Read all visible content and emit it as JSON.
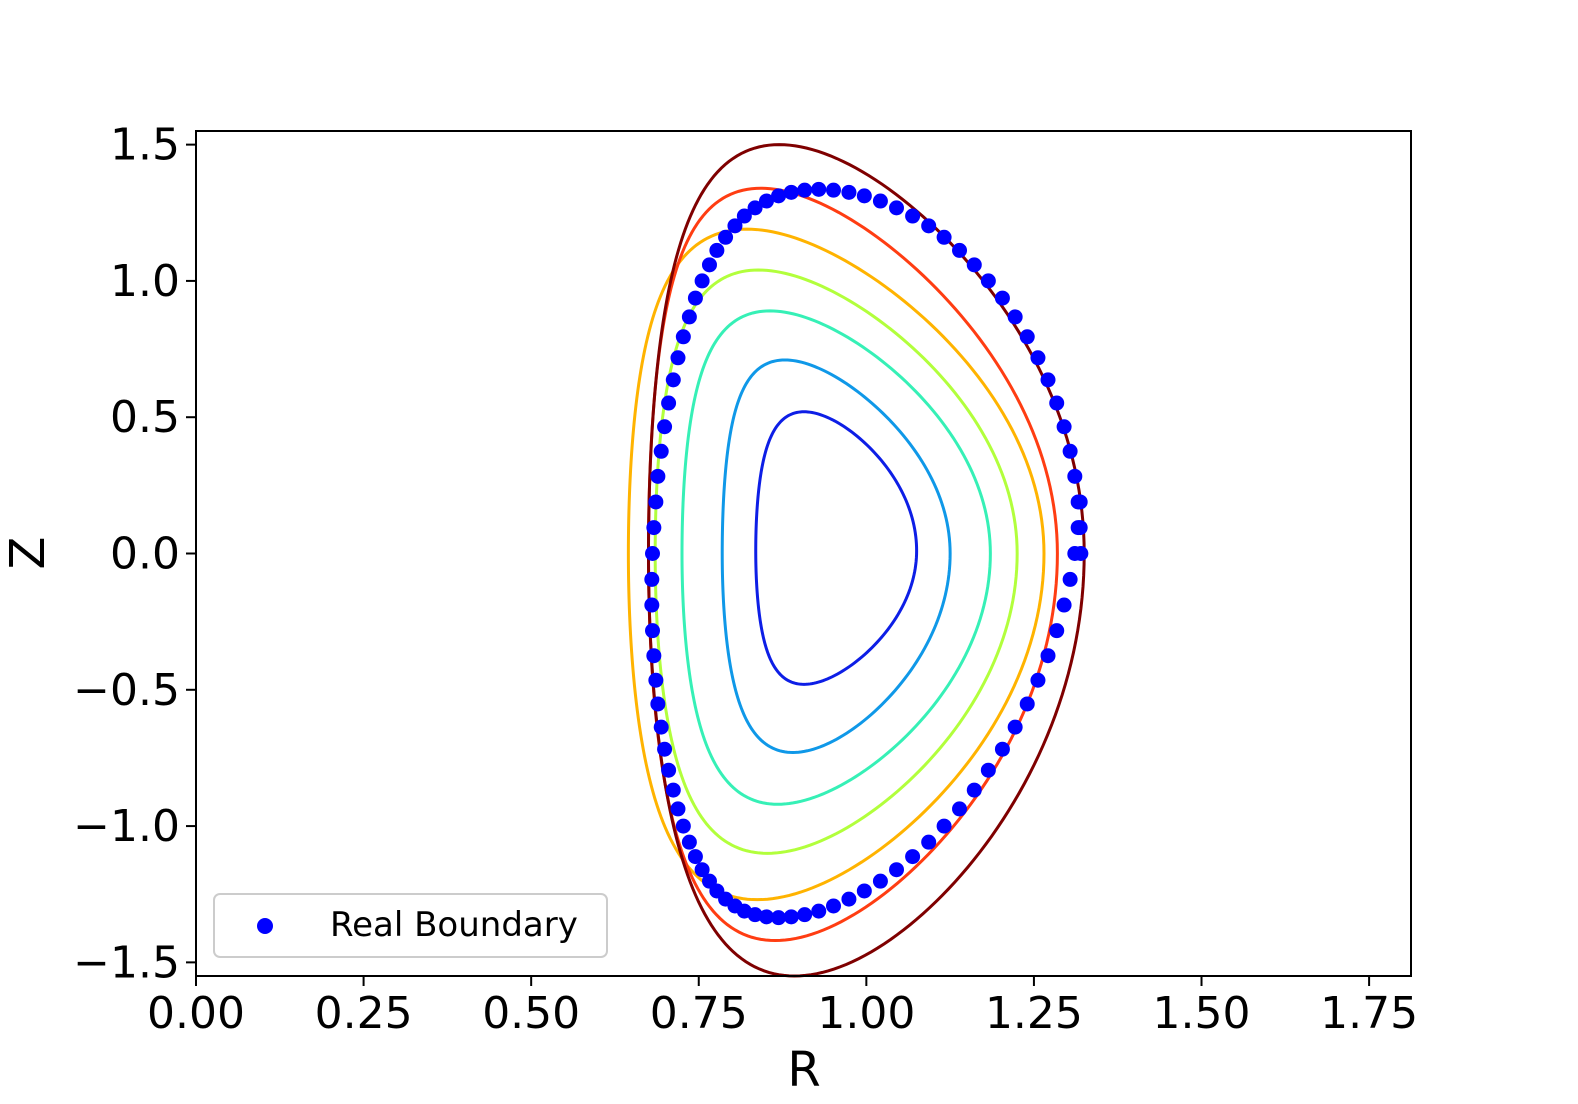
{
  "chart_data": {
    "type": "scatter",
    "xlabel": "R",
    "ylabel": "Z",
    "xlim": [
      0.0,
      1.8125
    ],
    "ylim": [
      -1.55,
      1.55
    ],
    "x_ticks": [
      0.0,
      0.25,
      0.5,
      0.75,
      1.0,
      1.25,
      1.5,
      1.75
    ],
    "x_tick_labels": [
      "0.00",
      "0.25",
      "0.50",
      "0.75",
      "1.00",
      "1.25",
      "1.50",
      "1.75"
    ],
    "y_ticks": [
      1.5,
      1.0,
      0.5,
      0.0,
      -0.5,
      -1.0,
      -1.5
    ],
    "y_tick_labels": [
      "1.5",
      "1.0",
      "0.5",
      "0.0",
      "−0.5",
      "−1.0",
      "−1.5"
    ],
    "grid": false,
    "legend": {
      "placement": "lower-left",
      "entries": [
        "Real Boundary"
      ]
    },
    "contours": [
      {
        "color": "#0d1ee6",
        "R0": 0.955,
        "a": 0.12,
        "kappa_up": 0.51,
        "kappa_low": 0.49,
        "delta_up": 0.4,
        "delta_low": 0.4,
        "z_shift": 0.01
      },
      {
        "color": "#0f98e8",
        "R0": 0.955,
        "a": 0.17,
        "kappa_up": 0.71,
        "kappa_low": 0.73,
        "delta_up": 0.45,
        "delta_low": 0.38,
        "z_shift": 0.0
      },
      {
        "color": "#36f0b6",
        "R0": 0.955,
        "a": 0.23,
        "kappa_up": 0.89,
        "kappa_low": 0.92,
        "delta_up": 0.43,
        "delta_low": 0.38,
        "z_shift": 0.0
      },
      {
        "color": "#b2ff3c",
        "R0": 0.955,
        "a": 0.27,
        "kappa_up": 1.04,
        "kappa_low": 1.1,
        "delta_up": 0.43,
        "delta_low": 0.38,
        "z_shift": 0.0
      },
      {
        "color": "#ffb300",
        "R0": 0.955,
        "a": 0.31,
        "kappa_up": 1.19,
        "kappa_low": 1.27,
        "delta_up": 0.43,
        "delta_low": 0.38,
        "z_shift": 0.0
      },
      {
        "color": "#ff3d12",
        "R0": 0.98,
        "a": 0.305,
        "kappa_up": 1.34,
        "kappa_low": 1.42,
        "delta_up": 0.45,
        "delta_low": 0.38,
        "z_shift": 0.0
      },
      {
        "color": "#7f0000",
        "R0": 1.0,
        "a": 0.325,
        "kappa_up": 1.5,
        "kappa_low": 1.55,
        "delta_up": 0.4,
        "delta_low": 0.33,
        "z_shift": 0.0
      }
    ],
    "series": [
      {
        "name": "Real Boundary",
        "color": "#0000ff",
        "shape": {
          "R0": 1.0,
          "a": 0.32,
          "kappa_up": 1.45,
          "kappa_low": 1.45,
          "delta_up": 0.38,
          "delta_low": 0.38
        },
        "x": [
          1.32,
          1.319,
          1.316,
          1.311,
          1.304,
          1.295,
          1.284,
          1.271,
          1.256,
          1.24,
          1.222,
          1.203,
          1.182,
          1.161,
          1.139,
          1.116,
          1.093,
          1.069,
          1.045,
          1.021,
          0.997,
          0.974,
          0.951,
          0.929,
          0.908,
          0.888,
          0.869,
          0.851,
          0.834,
          0.818,
          0.804,
          0.79,
          0.777,
          0.766,
          0.755,
          0.745,
          0.736,
          0.727,
          0.719,
          0.712,
          0.705,
          0.699,
          0.694,
          0.689,
          0.686,
          0.683,
          0.681,
          0.68,
          0.68,
          0.681,
          0.683,
          0.686,
          0.689,
          0.694,
          0.699,
          0.705,
          0.712,
          0.719,
          0.727,
          0.736,
          0.745,
          0.755,
          0.766,
          0.777,
          0.79,
          0.804,
          0.818,
          0.834,
          0.851,
          0.869,
          0.888,
          0.908,
          0.929,
          0.951,
          0.974,
          0.997,
          1.021,
          1.045,
          1.069,
          1.093,
          1.116,
          1.139,
          1.161,
          1.182,
          1.203,
          1.222,
          1.24,
          1.256,
          1.271,
          1.284,
          1.295,
          1.304,
          1.311,
          1.316,
          1.319
        ],
        "y": [
          0.0,
          0.095,
          0.189,
          0.283,
          0.375,
          0.465,
          0.552,
          0.637,
          0.718,
          0.795,
          0.868,
          0.937,
          1.0,
          1.059,
          1.112,
          1.16,
          1.202,
          1.238,
          1.268,
          1.293,
          1.312,
          1.325,
          1.333,
          1.336,
          1.333,
          1.325,
          1.312,
          1.293,
          1.268,
          1.238,
          1.202,
          1.16,
          1.112,
          1.059,
          1.0,
          0.937,
          0.868,
          0.795,
          0.718,
          0.637,
          0.552,
          0.465,
          0.375,
          0.283,
          0.189,
          0.095,
          0.0,
          -0.095,
          -0.189,
          -0.283,
          -0.375,
          -0.465,
          -0.552,
          -0.637,
          -0.718,
          -0.795,
          -0.868,
          -0.937,
          -1.0,
          -1.059,
          -1.112,
          -1.16,
          -1.202,
          -1.238,
          -1.268,
          -1.293,
          -1.312,
          -1.325,
          -1.333,
          -1.336,
          -1.333,
          -1.325,
          -1.312,
          -1.293,
          -1.268,
          -1.238,
          -1.202,
          -1.16,
          -1.112,
          -1.059,
          -1.0,
          -0.937,
          -0.868,
          -0.795,
          -0.718,
          -0.637,
          -0.552,
          -0.465,
          -0.375,
          -0.283,
          -0.189,
          -0.095,
          0.0,
          0.095,
          0.189
        ]
      }
    ]
  }
}
